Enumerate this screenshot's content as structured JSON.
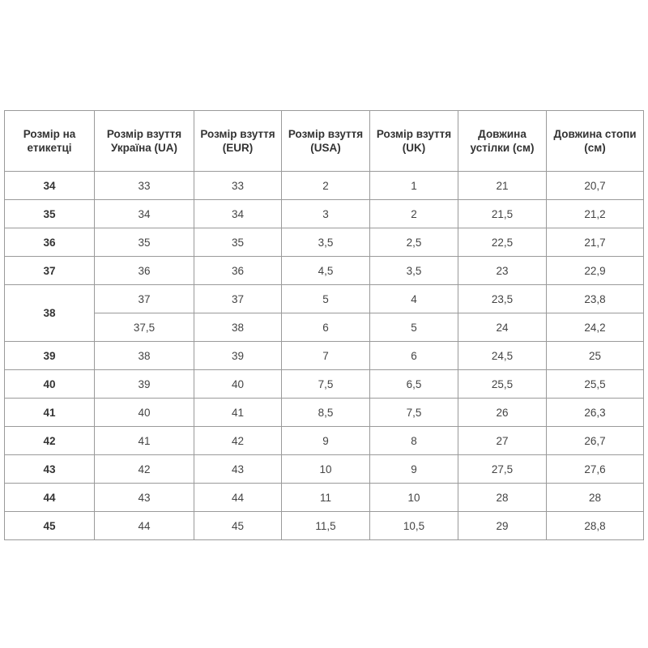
{
  "table": {
    "headers": [
      "Розмір на етикетці",
      "Розмір взуття Україна (UA)",
      "Розмір взуття (EUR)",
      "Розмір взуття (USA)",
      "Розмір взуття (UK)",
      "Довжина устілки (см)",
      "Довжина стопи (см)"
    ],
    "rows": [
      {
        "label": "34",
        "sub": [
          [
            "33",
            "33",
            "2",
            "1",
            "21",
            "20,7"
          ]
        ]
      },
      {
        "label": "35",
        "sub": [
          [
            "34",
            "34",
            "3",
            "2",
            "21,5",
            "21,2"
          ]
        ]
      },
      {
        "label": "36",
        "sub": [
          [
            "35",
            "35",
            "3,5",
            "2,5",
            "22,5",
            "21,7"
          ]
        ]
      },
      {
        "label": "37",
        "sub": [
          [
            "36",
            "36",
            "4,5",
            "3,5",
            "23",
            "22,9"
          ]
        ]
      },
      {
        "label": "38",
        "sub": [
          [
            "37",
            "37",
            "5",
            "4",
            "23,5",
            "23,8"
          ],
          [
            "37,5",
            "38",
            "6",
            "5",
            "24",
            "24,2"
          ]
        ]
      },
      {
        "label": "39",
        "sub": [
          [
            "38",
            "39",
            "7",
            "6",
            "24,5",
            "25"
          ]
        ]
      },
      {
        "label": "40",
        "sub": [
          [
            "39",
            "40",
            "7,5",
            "6,5",
            "25,5",
            "25,5"
          ]
        ]
      },
      {
        "label": "41",
        "sub": [
          [
            "40",
            "41",
            "8,5",
            "7,5",
            "26",
            "26,3"
          ]
        ]
      },
      {
        "label": "42",
        "sub": [
          [
            "41",
            "42",
            "9",
            "8",
            "27",
            "26,7"
          ]
        ]
      },
      {
        "label": "43",
        "sub": [
          [
            "42",
            "43",
            "10",
            "9",
            "27,5",
            "27,6"
          ]
        ]
      },
      {
        "label": "44",
        "sub": [
          [
            "43",
            "44",
            "11",
            "10",
            "28",
            "28"
          ]
        ]
      },
      {
        "label": "45",
        "sub": [
          [
            "44",
            "45",
            "11,5",
            "10,5",
            "29",
            "28,8"
          ]
        ]
      }
    ]
  }
}
